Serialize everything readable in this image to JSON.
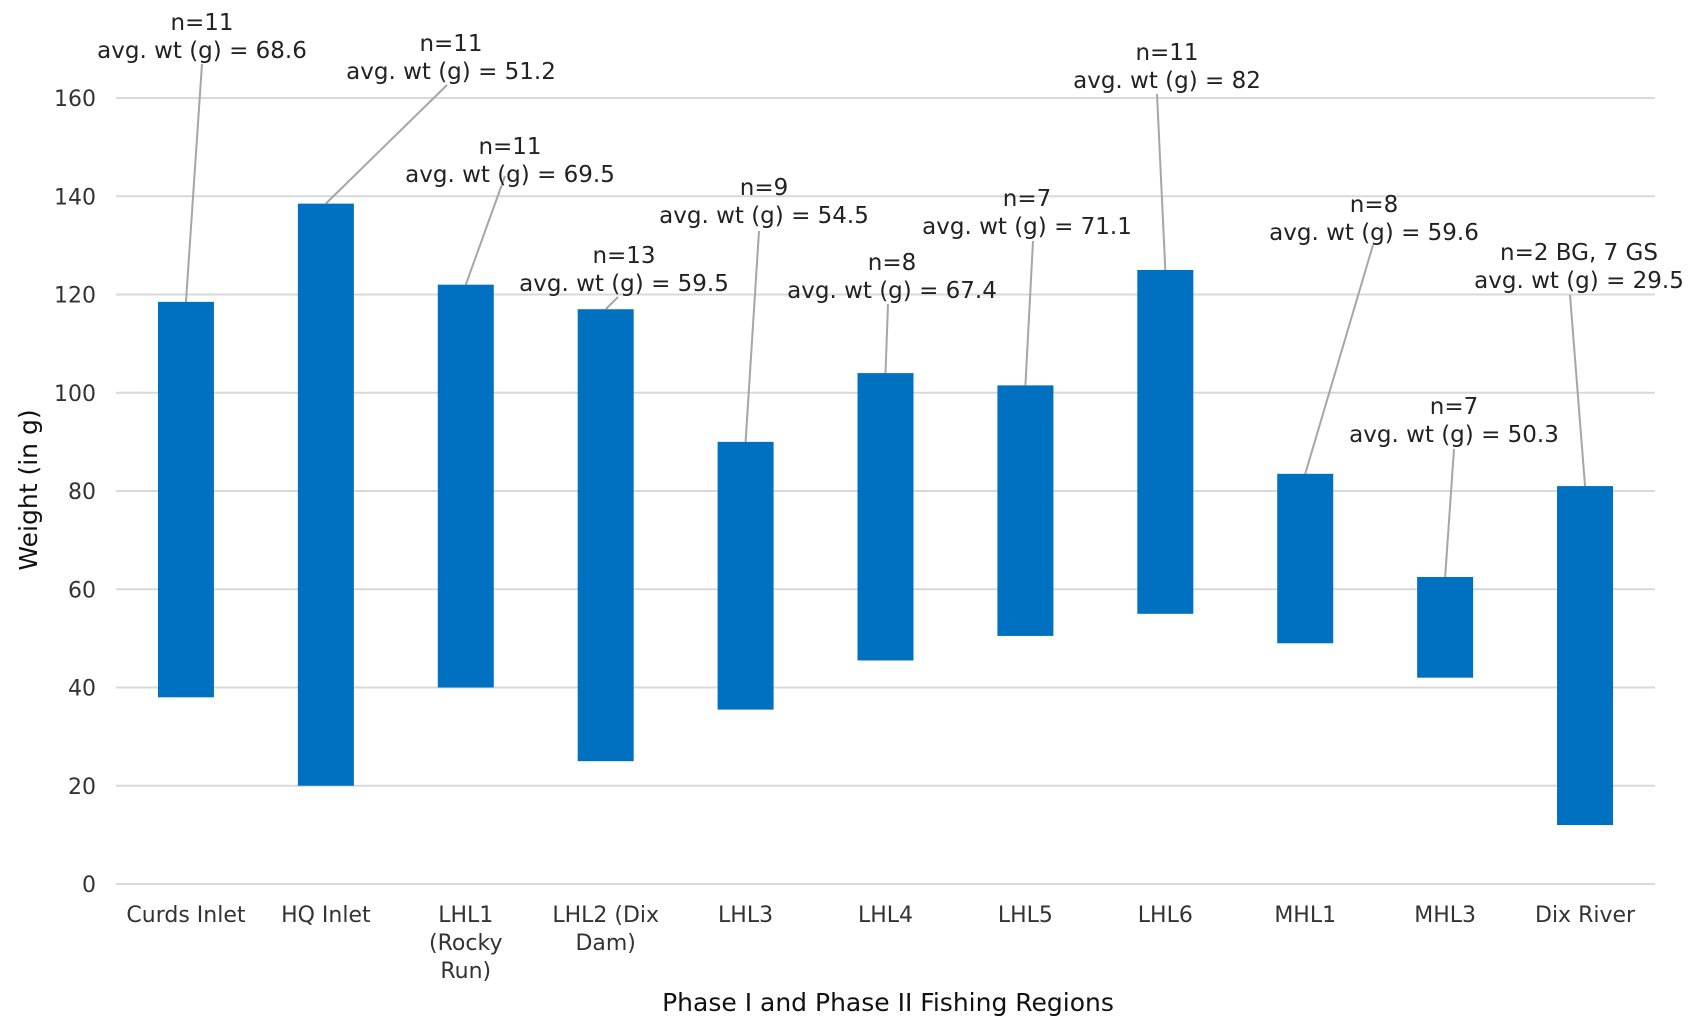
{
  "chart_data": {
    "type": "bar",
    "subtype": "floating-range",
    "xlabel": "Phase I and Phase II Fishing Regions",
    "ylabel": "Weight (in g)",
    "ylim": [
      0,
      160
    ],
    "yticks": [
      0,
      20,
      40,
      60,
      80,
      100,
      120,
      140,
      160
    ],
    "grid": true,
    "bar_color": "#0070c0",
    "categories": [
      [
        "Curds Inlet"
      ],
      [
        "HQ Inlet"
      ],
      [
        "LHL1",
        "(Rocky",
        "Run)"
      ],
      [
        "LHL2 (Dix",
        "Dam)"
      ],
      [
        "LHL3"
      ],
      [
        "LHL4"
      ],
      [
        "LHL5"
      ],
      [
        "LHL6"
      ],
      [
        "MHL1"
      ],
      [
        "MHL3"
      ],
      [
        "Dix River"
      ]
    ],
    "ranges": [
      [
        38,
        118.5
      ],
      [
        20,
        138.5
      ],
      [
        40,
        122
      ],
      [
        25,
        117
      ],
      [
        35.5,
        90
      ],
      [
        45.5,
        104
      ],
      [
        50.5,
        101.5
      ],
      [
        55,
        125
      ],
      [
        49,
        83.5
      ],
      [
        42,
        62.5
      ],
      [
        12,
        81
      ]
    ],
    "annotations": [
      [
        "n=11",
        "avg. wt (g) = 68.6"
      ],
      [
        "n=11",
        "avg. wt (g) = 51.2"
      ],
      [
        "n=11",
        "avg. wt (g) = 69.5"
      ],
      [
        "n=13",
        "avg. wt (g) = 59.5"
      ],
      [
        "n=9",
        "avg. wt (g) = 54.5"
      ],
      [
        "n=8",
        "avg. wt (g) = 67.4"
      ],
      [
        "n=7",
        "avg. wt (g) = 71.1"
      ],
      [
        "n=11",
        "avg. wt (g) = 82"
      ],
      [
        "n=8",
        "avg. wt (g) = 59.6"
      ],
      [
        "n=7",
        "avg. wt (g) = 50.3"
      ],
      [
        "n=2 BG, 7 GS",
        "avg. wt (g) = 29.5"
      ]
    ]
  }
}
